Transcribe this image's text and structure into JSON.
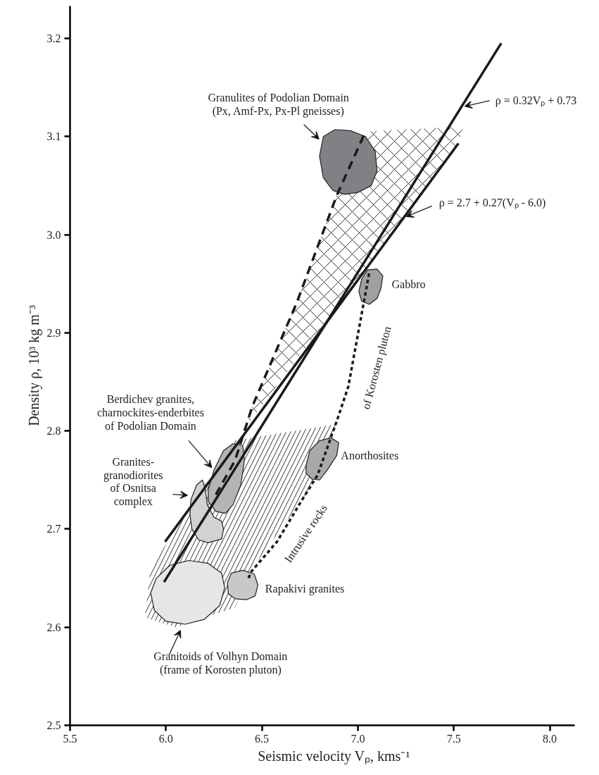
{
  "chart_data": {
    "type": "line",
    "xlabel": "Seismic velocity Vₚ, kms⁻¹",
    "ylabel": "Density ρ, 10³ kg m⁻³",
    "xlim": [
      5.5,
      8.13
    ],
    "ylim": [
      2.5,
      3.233
    ],
    "xticks": [
      {
        "value": 5.5,
        "label": "5.5"
      },
      {
        "value": 6.0,
        "label": "6.0"
      },
      {
        "value": 6.5,
        "label": "6.5"
      },
      {
        "value": 7.0,
        "label": "7.0"
      },
      {
        "value": 7.5,
        "label": "7.5"
      },
      {
        "value": 8.0,
        "label": "8.0"
      }
    ],
    "yticks": [
      {
        "value": 2.5,
        "label": "2.5"
      },
      {
        "value": 2.6,
        "label": "2.6"
      },
      {
        "value": 2.7,
        "label": "2.7"
      },
      {
        "value": 2.8,
        "label": "2.8"
      },
      {
        "value": 2.9,
        "label": "2.9"
      },
      {
        "value": 3.0,
        "label": "3.0"
      },
      {
        "value": 3.1,
        "label": "3.1"
      },
      {
        "value": 3.2,
        "label": "3.2"
      }
    ],
    "series": [
      {
        "type": "area",
        "color": "#000000",
        "x": [
          5.89,
          5.92,
          6.35,
          6.89,
          6.78,
          6.71,
          6.45,
          6.36,
          6.05
        ],
        "values": [
          2.61,
          2.66,
          2.79,
          2.807,
          2.75,
          2.73,
          2.66,
          2.62,
          2.6
        ]
      },
      {
        "type": "area",
        "color": "#000000",
        "x": [
          6.4,
          6.45,
          6.68,
          6.89,
          7.04,
          7.55,
          7.52
        ],
        "values": [
          2.8,
          2.825,
          2.93,
          3.04,
          3.105,
          3.11,
          3.09
        ]
      },
      {
        "type": "area",
        "color": "#e6e6e8",
        "x": [
          5.92,
          5.95,
          6.02,
          6.12,
          6.22,
          6.29,
          6.306,
          6.28,
          6.2,
          6.1,
          6.0,
          5.94
        ],
        "values": [
          2.635,
          2.65,
          2.663,
          2.668,
          2.665,
          2.655,
          2.64,
          2.622,
          2.608,
          2.603,
          2.606,
          2.617
        ]
      },
      {
        "type": "area",
        "color": "#c8c8ca",
        "x": [
          6.32,
          6.34,
          6.4,
          6.46,
          6.479,
          6.465,
          6.42,
          6.36,
          6.325
        ],
        "values": [
          2.645,
          2.655,
          2.658,
          2.654,
          2.643,
          2.632,
          2.628,
          2.629,
          2.634
        ]
      },
      {
        "type": "area",
        "color": "#d2d2d4",
        "x": [
          6.13,
          6.16,
          6.19,
          6.205,
          6.215,
          6.25,
          6.29,
          6.3,
          6.29,
          6.22,
          6.17,
          6.135,
          6.125
        ],
        "values": [
          2.73,
          2.745,
          2.75,
          2.74,
          2.725,
          2.712,
          2.708,
          2.7,
          2.69,
          2.686,
          2.689,
          2.7,
          2.715
        ]
      },
      {
        "type": "area",
        "color": "#b4b4b6",
        "x": [
          6.22,
          6.25,
          6.3,
          6.35,
          6.4,
          6.409,
          6.39,
          6.35,
          6.31,
          6.26,
          6.22
        ],
        "values": [
          2.74,
          2.76,
          2.78,
          2.787,
          2.785,
          2.77,
          2.745,
          2.725,
          2.716,
          2.718,
          2.728
        ]
      },
      {
        "type": "area",
        "color": "#a9a9ac",
        "x": [
          6.73,
          6.75,
          6.8,
          6.86,
          6.9,
          6.89,
          6.84,
          6.8,
          6.76,
          6.73
        ],
        "values": [
          2.765,
          2.78,
          2.79,
          2.793,
          2.788,
          2.775,
          2.76,
          2.75,
          2.751,
          2.757
        ]
      },
      {
        "type": "area",
        "color": "#a0a0a3",
        "x": [
          7.02,
          7.05,
          7.1,
          7.13,
          7.12,
          7.1,
          7.06,
          7.02,
          7.005
        ],
        "values": [
          2.955,
          2.964,
          2.965,
          2.958,
          2.945,
          2.935,
          2.929,
          2.932,
          2.942
        ]
      },
      {
        "type": "area",
        "color": "#808085",
        "x": [
          6.8,
          6.82,
          6.88,
          6.96,
          7.04,
          7.09,
          7.1,
          7.07,
          7.0,
          6.93,
          6.87,
          6.82
        ],
        "values": [
          3.08,
          3.1,
          3.107,
          3.106,
          3.1,
          3.085,
          3.065,
          3.05,
          3.043,
          3.041,
          3.045,
          3.058
        ]
      },
      {
        "color": "#1a1a1a",
        "line_style": "solid",
        "x": [
          5.99,
          7.747
        ],
        "values": [
          2.646,
          3.195
        ]
      },
      {
        "color": "#1a1a1a",
        "line_style": "solid",
        "x": [
          5.995,
          7.524
        ],
        "values": [
          2.687,
          3.093
        ]
      },
      {
        "color": "#1a1a1a",
        "line_style": "dashed",
        "x": [
          6.26,
          6.36,
          6.45,
          6.68,
          6.89,
          7.04
        ],
        "values": [
          2.735,
          2.77,
          2.825,
          2.93,
          3.04,
          3.105
        ]
      },
      {
        "color": "#1a1a1a",
        "line_style": "dotted",
        "x": [
          6.43,
          6.446,
          6.578,
          6.71,
          6.79,
          6.89,
          6.95,
          7.06
        ],
        "values": [
          2.65,
          2.657,
          2.687,
          2.73,
          2.755,
          2.81,
          2.845,
          2.962
        ]
      }
    ],
    "annotations": [
      {
        "text": "Granulites of Podolian Domain\n(Px, Amf-Px, Px-Pl gneisses)",
        "x": 6.81,
        "y": 3.095
      },
      {
        "text": "ρ = 0.32Vₚ + 0.73",
        "x": 7.54,
        "y": 3.13
      },
      {
        "text": "ρ = 2.7 + 0.27(Vₚ - 6.0)",
        "x": 7.236,
        "y": 3.017
      },
      {
        "text": "Berdichev granites,\ncharnockites-enderbites\nof Podolian Domain",
        "x": 6.25,
        "y": 2.76
      },
      {
        "text": "Granites-\ngranodiorites\nof Osnitsa\ncomplex",
        "x": 6.13,
        "y": 2.734
      },
      {
        "text": "Granitoids of Volhyn Domain\n(frame of Korosten pluton)",
        "x": 6.083,
        "y": 2.6
      },
      {
        "text": "Gabbro",
        "x": 7.07,
        "y": 2.947
      },
      {
        "text": "Anorthosites",
        "x": 6.82,
        "y": 2.77
      },
      {
        "text": "Rapakivi granites",
        "x": 6.4,
        "y": 2.643
      },
      {
        "text": "Intrusive rocks",
        "x": 6.71,
        "y": 2.73
      },
      {
        "text": "of Korosten pluton",
        "x": 6.95,
        "y": 2.845
      }
    ]
  }
}
